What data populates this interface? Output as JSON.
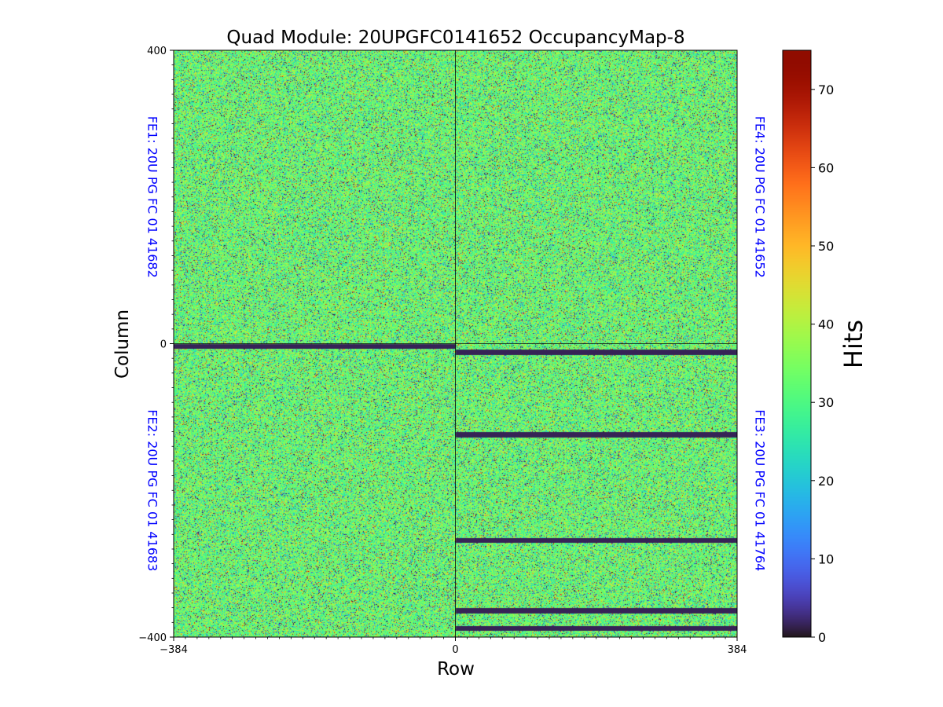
{
  "chart_data": {
    "type": "heatmap",
    "title": "Quad Module: 20UPGFC0141652 OccupancyMap-8",
    "xlabel": "Row",
    "ylabel": "Column",
    "xlim": [
      -384,
      384
    ],
    "ylim": [
      -400,
      400
    ],
    "x_ticks": [
      {
        "value": -384,
        "label": "−384"
      },
      {
        "value": 0,
        "label": "0"
      },
      {
        "value": 384,
        "label": "384"
      }
    ],
    "y_ticks": [
      {
        "value": 400,
        "label": "400"
      },
      {
        "value": 0,
        "label": "0"
      },
      {
        "value": -400,
        "label": "−400"
      }
    ],
    "colorbar": {
      "label": "Hits",
      "range": [
        0,
        75
      ],
      "ticks": [
        {
          "value": 0,
          "label": "0"
        },
        {
          "value": 10,
          "label": "10"
        },
        {
          "value": 20,
          "label": "20"
        },
        {
          "value": 30,
          "label": "30"
        },
        {
          "value": 40,
          "label": "40"
        },
        {
          "value": 50,
          "label": "50"
        },
        {
          "value": 60,
          "label": "60"
        },
        {
          "value": 70,
          "label": "70"
        }
      ],
      "colormap": "turbo"
    },
    "chip_labels": [
      {
        "id": "fe1",
        "text": "FE1: 20U PG FC 01 41682",
        "quadrant": "top-left",
        "color": "#0000ff"
      },
      {
        "id": "fe2",
        "text": "FE2: 20U PG FC 01 41683",
        "quadrant": "bottom-left",
        "color": "#0000ff"
      },
      {
        "id": "fe3",
        "text": "FE3: 20U PG FC 01 41764",
        "quadrant": "bottom-right",
        "color": "#0000ff"
      },
      {
        "id": "fe4",
        "text": "FE4: 20U PG FC 01 41652",
        "quadrant": "top-right",
        "color": "#0000ff"
      }
    ],
    "typical_hits_range": [
      20,
      45
    ],
    "dead_bands": [
      {
        "chip": "FE2",
        "x_range": [
          -384,
          0
        ],
        "y_range": [
          -6,
          0
        ]
      },
      {
        "chip": "FE3",
        "x_range": [
          0,
          384
        ],
        "y_range": [
          -15,
          -8
        ]
      },
      {
        "chip": "FE3",
        "x_range": [
          0,
          384
        ],
        "y_range": [
          -127,
          -120
        ]
      },
      {
        "chip": "FE3",
        "x_range": [
          0,
          384
        ],
        "y_range": [
          -271,
          -264
        ]
      },
      {
        "chip": "FE3",
        "x_range": [
          0,
          384
        ],
        "y_range": [
          -367,
          -360
        ]
      },
      {
        "chip": "FE3",
        "x_range": [
          0,
          384
        ],
        "y_range": [
          -391,
          -384
        ]
      }
    ]
  }
}
